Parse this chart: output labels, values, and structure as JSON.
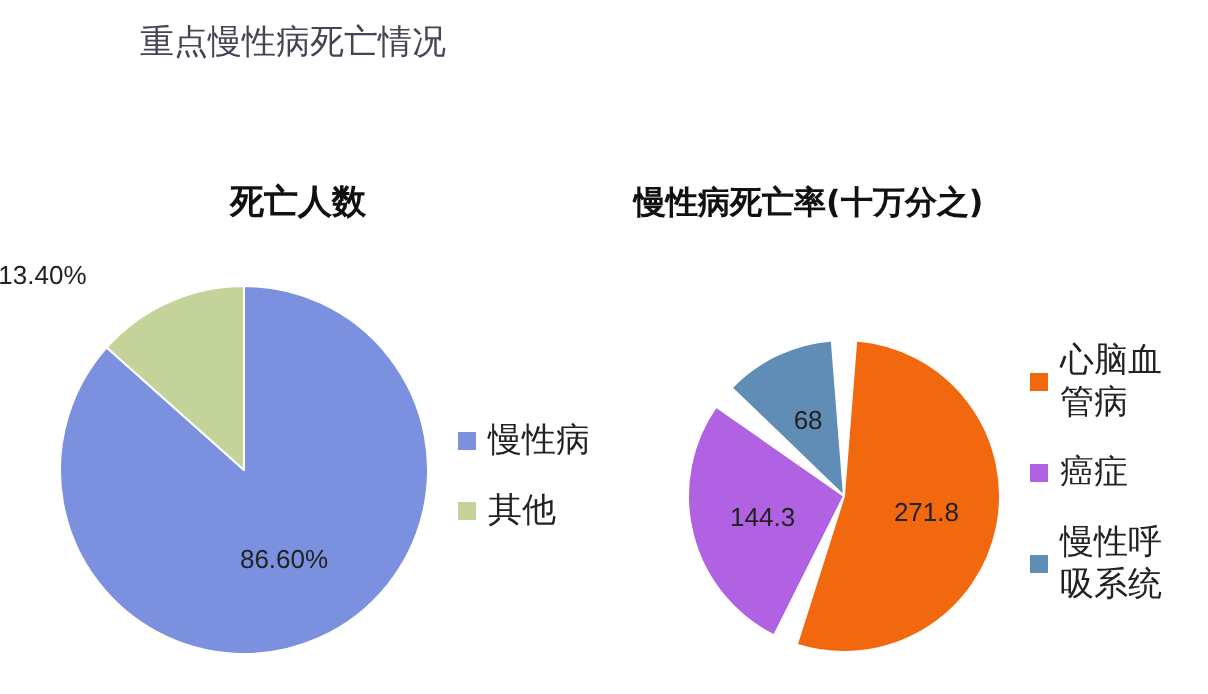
{
  "chart_data": [
    {
      "type": "pie",
      "title": "重点慢性病死亡情况",
      "subtitle": "死亡人数",
      "categories": [
        "慢性病",
        "其他"
      ],
      "values": [
        86.6,
        13.4
      ],
      "colors": [
        "#7b90de",
        "#c3d39a"
      ],
      "value_labels": [
        "86.60%",
        "13.40%"
      ],
      "legend": "right"
    },
    {
      "type": "pie",
      "title": "慢性病死亡率(十万分之)",
      "categories": [
        "心脑血管病",
        "癌症",
        "慢性呼吸系统"
      ],
      "values": [
        271.8,
        144.3,
        68
      ],
      "colors": [
        "#f2680f",
        "#b062e2",
        "#5f8db6"
      ],
      "data_labels": true,
      "legend": "right"
    }
  ]
}
